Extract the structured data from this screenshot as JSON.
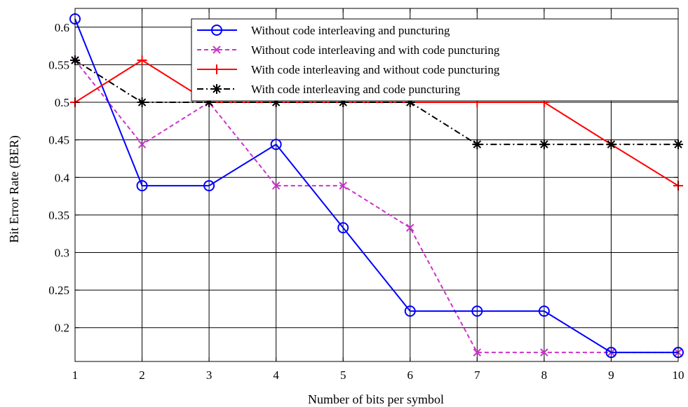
{
  "chart_data": {
    "type": "line",
    "title": "",
    "xlabel": "Number of bits per symbol",
    "ylabel": "Bit Error Rate (BER)",
    "x": [
      1,
      2,
      3,
      4,
      5,
      6,
      7,
      8,
      9,
      10
    ],
    "xlim": [
      1,
      10
    ],
    "ylim": [
      0.155,
      0.625
    ],
    "xticks": [
      "1",
      "2",
      "3",
      "4",
      "5",
      "6",
      "7",
      "8",
      "9",
      "10"
    ],
    "yticks": [
      0.2,
      0.25,
      0.3,
      0.35,
      0.4,
      0.45,
      0.5,
      0.55,
      0.6
    ],
    "ytick_labels": [
      "0.2",
      "0.25",
      "0.3",
      "0.35",
      "0.4",
      "0.45",
      "0.5",
      "0.55",
      "0.6"
    ],
    "grid": true,
    "legend_position": "top-right",
    "series": [
      {
        "name": "Without code interleaving and puncturing",
        "values": [
          0.611,
          0.389,
          0.389,
          0.444,
          0.333,
          0.222,
          0.222,
          0.222,
          0.167,
          0.167
        ],
        "color": "#0000ff",
        "line_style": "solid",
        "marker": "circle"
      },
      {
        "name": "Without code interleaving and with code puncturing",
        "values": [
          0.556,
          0.444,
          0.5,
          0.389,
          0.389,
          0.333,
          0.167,
          0.167,
          0.167,
          0.167
        ],
        "color": "#cc33cc",
        "line_style": "dashed",
        "marker": "x"
      },
      {
        "name": "With code interleaving and without code puncturing",
        "values": [
          0.5,
          0.556,
          0.5,
          0.5,
          0.5,
          0.5,
          0.5,
          0.5,
          0.444,
          0.389
        ],
        "color": "#ff0000",
        "line_style": "solid",
        "marker": "plus"
      },
      {
        "name": "With code interleaving and code puncturing",
        "values": [
          0.556,
          0.5,
          0.5,
          0.5,
          0.5,
          0.5,
          0.444,
          0.444,
          0.444,
          0.444
        ],
        "color": "#000000",
        "line_style": "dashdot",
        "marker": "star"
      }
    ]
  }
}
